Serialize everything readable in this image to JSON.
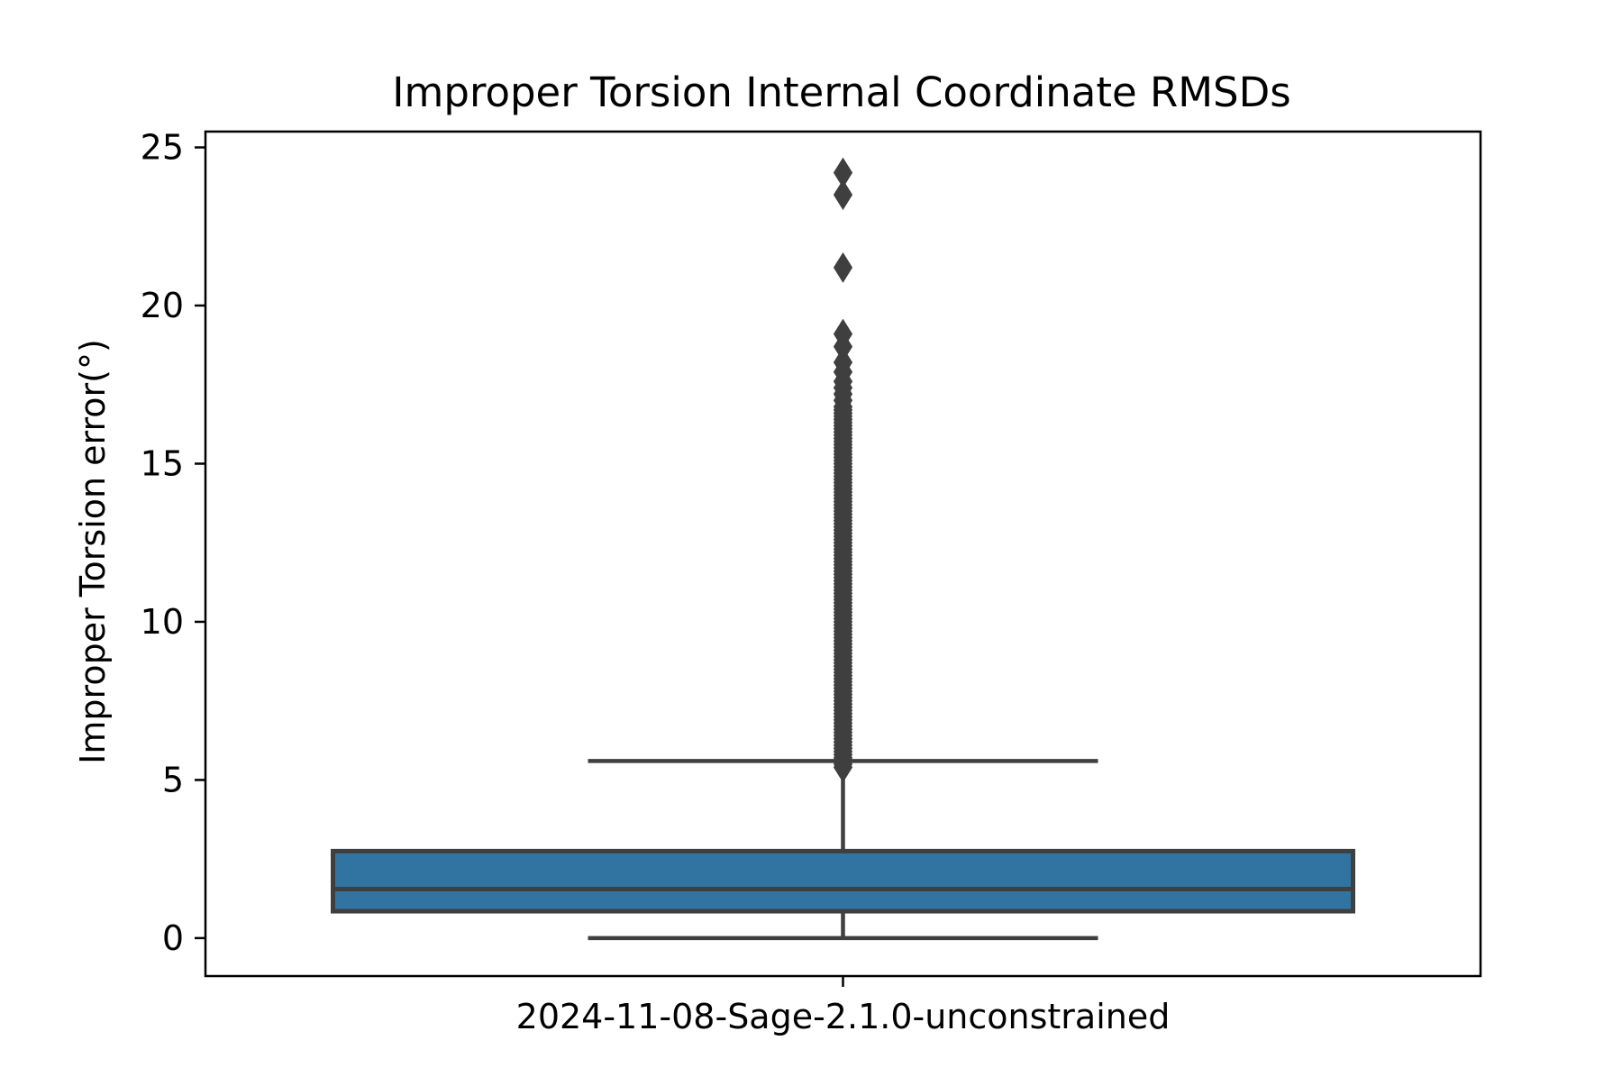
{
  "chart_data": {
    "type": "box",
    "title": "Improper Torsion Internal Coordinate RMSDs",
    "xlabel": "",
    "ylabel": "Improper Torsion error(°)",
    "categories": [
      "2024-11-08-Sage-2.1.0-unconstrained"
    ],
    "ylim": [
      -1.2,
      25.5
    ],
    "yticks": [
      0,
      5,
      10,
      15,
      20,
      25
    ],
    "grid": false,
    "colors": {
      "box_fill": "#3274a1",
      "line": "#3f3f3f",
      "axes": "#000000"
    },
    "boxes": [
      {
        "category": "2024-11-08-Sage-2.1.0-unconstrained",
        "whisker_low": 0.0,
        "q1": 0.85,
        "median": 1.55,
        "q3": 2.75,
        "whisker_high": 5.6,
        "outliers": [
          5.4,
          5.5,
          5.6,
          5.7,
          5.8,
          5.9,
          6.0,
          6.1,
          6.2,
          6.3,
          6.4,
          6.5,
          6.6,
          6.7,
          6.8,
          6.9,
          7.0,
          7.1,
          7.2,
          7.3,
          7.4,
          7.5,
          7.6,
          7.7,
          7.8,
          7.9,
          8.0,
          8.1,
          8.2,
          8.3,
          8.4,
          8.5,
          8.6,
          8.7,
          8.8,
          8.9,
          9.0,
          9.1,
          9.2,
          9.3,
          9.4,
          9.5,
          9.6,
          9.7,
          9.8,
          9.9,
          10.0,
          10.1,
          10.2,
          10.3,
          10.4,
          10.5,
          10.6,
          10.7,
          10.8,
          10.9,
          11.0,
          11.1,
          11.2,
          11.3,
          11.4,
          11.5,
          11.6,
          11.7,
          11.8,
          11.9,
          12.0,
          12.1,
          12.2,
          12.3,
          12.4,
          12.5,
          12.6,
          12.7,
          12.8,
          12.9,
          13.0,
          13.1,
          13.2,
          13.3,
          13.4,
          13.5,
          13.6,
          13.7,
          13.8,
          13.9,
          14.0,
          14.1,
          14.2,
          14.3,
          14.4,
          14.5,
          14.6,
          14.7,
          14.8,
          14.9,
          15.0,
          15.1,
          15.2,
          15.3,
          15.4,
          15.5,
          15.6,
          15.7,
          15.8,
          15.9,
          16.0,
          16.1,
          16.2,
          16.3,
          16.4,
          16.5,
          16.6,
          16.7,
          16.8,
          17.0,
          17.2,
          17.4,
          17.6,
          17.9,
          18.2,
          18.7,
          19.1,
          21.2,
          23.5,
          24.2
        ]
      }
    ]
  }
}
